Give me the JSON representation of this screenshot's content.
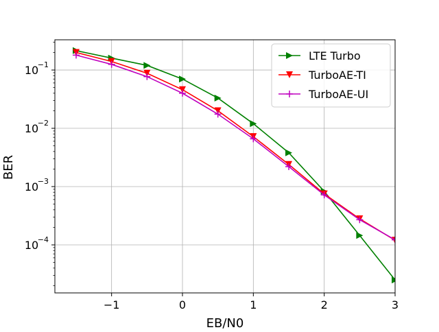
{
  "chart_data": {
    "type": "line",
    "xlabel": "EB/N0",
    "ylabel": "BER",
    "yscale": "log",
    "xlim": [
      -1.8,
      3.0
    ],
    "ylim": [
      1.5e-05,
      0.33
    ],
    "grid": true,
    "legend_position": "top-right",
    "x_ticks": [
      {
        "value": -1,
        "label": "−1"
      },
      {
        "value": 0,
        "label": "0"
      },
      {
        "value": 1,
        "label": "1"
      },
      {
        "value": 2,
        "label": "2"
      },
      {
        "value": 3,
        "label": "3"
      }
    ],
    "y_ticks": [
      {
        "value": 0.1,
        "label": "10",
        "exp": "−1"
      },
      {
        "value": 0.01,
        "label": "10",
        "exp": "−2"
      },
      {
        "value": 0.001,
        "label": "10",
        "exp": "−3"
      },
      {
        "value": 0.0001,
        "label": "10",
        "exp": "−4"
      }
    ],
    "series": [
      {
        "name": "LTE Turbo",
        "color": "#008000",
        "marker": "triangle-right",
        "x": [
          -1.5,
          -1.0,
          -0.5,
          0.0,
          0.5,
          1.0,
          1.5,
          2.0,
          2.5,
          3.0
        ],
        "y": [
          0.215,
          0.16,
          0.12,
          0.07,
          0.033,
          0.012,
          0.0038,
          0.00083,
          0.000145,
          2.5e-05
        ]
      },
      {
        "name": "TurboAE-TI",
        "color": "#ff0000",
        "marker": "triangle-down",
        "x": [
          -1.5,
          -1.0,
          -0.5,
          0.0,
          0.5,
          1.0,
          1.5,
          2.0,
          2.5,
          3.0
        ],
        "y": [
          0.2,
          0.14,
          0.088,
          0.046,
          0.02,
          0.0072,
          0.0024,
          0.00075,
          0.00028,
          0.00012
        ]
      },
      {
        "name": "TurboAE-UI",
        "color": "#bf00bf",
        "marker": "plus",
        "x": [
          -1.5,
          -1.0,
          -0.5,
          0.0,
          0.5,
          1.0,
          1.5,
          2.0,
          2.5,
          3.0
        ],
        "y": [
          0.18,
          0.125,
          0.077,
          0.04,
          0.0175,
          0.0066,
          0.0022,
          0.00072,
          0.00027,
          0.000122
        ]
      }
    ]
  }
}
